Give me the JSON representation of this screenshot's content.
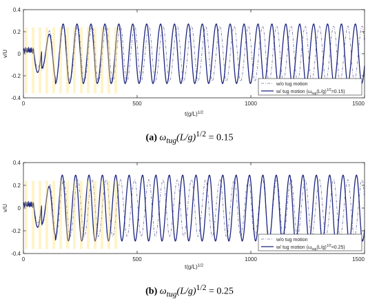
{
  "chart_data": [
    {
      "type": "line",
      "id": "a",
      "xlabel": "t(g/L)",
      "xlabel_sup": "1/2",
      "ylabel": "v/U",
      "xlim": [
        0,
        1500
      ],
      "ylim": [
        -0.4,
        0.4
      ],
      "xticks": [
        0,
        500,
        1000,
        1500
      ],
      "xtick_labels": [
        "0",
        "500",
        "1000",
        "1500"
      ],
      "yticks": [
        -0.4,
        -0.2,
        0,
        0.2,
        0.4
      ],
      "ytick_labels": [
        "-0.4",
        "-0.2",
        "0",
        "0.2",
        "0.4"
      ],
      "grid": false,
      "legend_position": "bottom-right",
      "legend": {
        "wo_label": "w/o tug motion",
        "w_label_prefix": "w/ tug motion (",
        "w_label_omega": "ω",
        "w_label_sub": "tug",
        "w_label_mid": "(L/g)",
        "w_label_sup": "1/2",
        "w_label_suffix": "=0.15)"
      },
      "series": [
        {
          "name": "w/o tug motion",
          "color": "#6b6ba0",
          "style": "dash-dot",
          "description": "periodic oscillation, period approx 62.5, amplitude approx 0.25",
          "x": [
            0,
            40,
            60,
            80,
            100,
            150,
            200,
            500,
            1000,
            1500
          ],
          "y_amplitude": 0.25,
          "period": 62.5
        },
        {
          "name": "w/ tug motion (ω_tug(L/g)^1/2=0.15)",
          "color": "#1a237e",
          "style": "solid",
          "description": "periodic oscillation, period approx 61.2, amplitude approx 0.25 to 0.28",
          "y_amplitude": 0.27,
          "period": 61.2
        }
      ],
      "caption": {
        "label": "(a)",
        "omega": "ω",
        "sub": "tug",
        "body": "(L/g)",
        "sup": "1/2",
        "value": " = 0.15"
      }
    },
    {
      "type": "line",
      "id": "b",
      "xlabel": "t(g/L)",
      "xlabel_sup": "1/2",
      "ylabel": "v/U",
      "xlim": [
        0,
        1500
      ],
      "ylim": [
        -0.4,
        0.4
      ],
      "xticks": [
        0,
        500,
        1000,
        1500
      ],
      "xtick_labels": [
        "0",
        "500",
        "1000",
        "1500"
      ],
      "yticks": [
        -0.4,
        -0.2,
        0,
        0.2,
        0.4
      ],
      "ytick_labels": [
        "-0.4",
        "-0.2",
        "0",
        "0.2",
        "0.4"
      ],
      "grid": false,
      "legend_position": "bottom-right",
      "legend": {
        "wo_label": "w/o tug motion",
        "w_label_prefix": "w/ tug motion (",
        "w_label_omega": "ω",
        "w_label_sub": "tug",
        "w_label_mid": "(L/g)",
        "w_label_sup": "1/2",
        "w_label_suffix": "=0.25)"
      },
      "series": [
        {
          "name": "w/o tug motion",
          "color": "#6b6ba0",
          "style": "dash-dot",
          "y_amplitude": 0.25,
          "period": 62.5
        },
        {
          "name": "w/ tug motion (ω_tug(L/g)^1/2=0.25)",
          "color": "#1a237e",
          "style": "solid",
          "y_amplitude": 0.29,
          "period": 58.8
        }
      ],
      "caption": {
        "label": "(b)",
        "omega": "ω",
        "sub": "tug",
        "body": "(L/g)",
        "sup": "1/2",
        "value": " = 0.25"
      }
    }
  ]
}
